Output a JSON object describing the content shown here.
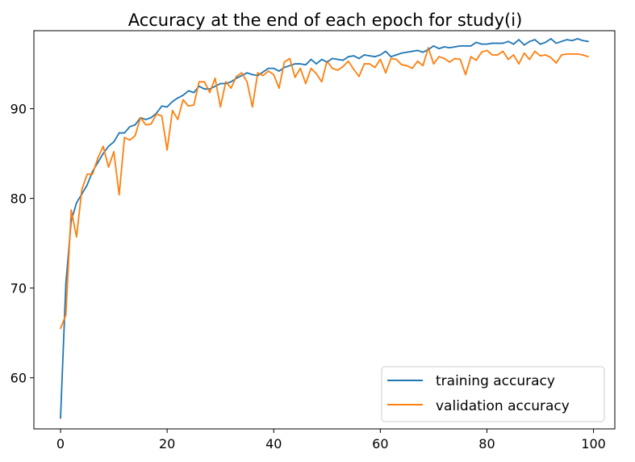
{
  "chart_data": {
    "type": "line",
    "title": "Accuracy at the end of each epoch for study(i)",
    "xlabel": "",
    "ylabel": "",
    "xlim": [
      -5,
      104
    ],
    "ylim": [
      54.3,
      98.7
    ],
    "xticks": [
      0,
      20,
      40,
      60,
      80,
      100
    ],
    "yticks": [
      60,
      70,
      80,
      90
    ],
    "grid": false,
    "legend_position": "lower-right",
    "x": [
      0,
      1,
      2,
      3,
      4,
      5,
      6,
      7,
      8,
      9,
      10,
      11,
      12,
      13,
      14,
      15,
      16,
      17,
      18,
      19,
      20,
      21,
      22,
      23,
      24,
      25,
      26,
      27,
      28,
      29,
      30,
      31,
      32,
      33,
      34,
      35,
      36,
      37,
      38,
      39,
      40,
      41,
      42,
      43,
      44,
      45,
      46,
      47,
      48,
      49,
      50,
      51,
      52,
      53,
      54,
      55,
      56,
      57,
      58,
      59,
      60,
      61,
      62,
      63,
      64,
      65,
      66,
      67,
      68,
      69,
      70,
      71,
      72,
      73,
      74,
      75,
      76,
      77,
      78,
      79,
      80,
      81,
      82,
      83,
      84,
      85,
      86,
      87,
      88,
      89,
      90,
      91,
      92,
      93,
      94,
      95,
      96,
      97,
      98,
      99
    ],
    "series": [
      {
        "name": "training accuracy",
        "color": "#1f77b4",
        "values": [
          55.5,
          70.5,
          77.5,
          79.5,
          80.5,
          81.5,
          83.0,
          84.0,
          85.0,
          85.8,
          86.3,
          87.3,
          87.3,
          88.0,
          88.2,
          89.0,
          88.8,
          89.0,
          89.5,
          90.3,
          90.2,
          90.8,
          91.2,
          91.5,
          92.0,
          91.8,
          92.5,
          92.2,
          92.2,
          92.5,
          92.8,
          92.8,
          93.0,
          93.4,
          93.7,
          94.0,
          93.8,
          93.7,
          94.1,
          94.5,
          94.5,
          94.2,
          94.6,
          94.8,
          95.0,
          95.0,
          94.9,
          95.5,
          95.0,
          95.5,
          95.2,
          95.6,
          95.5,
          95.4,
          95.8,
          95.9,
          95.6,
          96.0,
          95.9,
          95.8,
          96.0,
          96.4,
          95.8,
          96.0,
          96.2,
          96.3,
          96.4,
          96.5,
          96.3,
          96.6,
          97.0,
          96.7,
          96.9,
          96.8,
          96.9,
          97.0,
          97.0,
          97.0,
          97.4,
          97.2,
          97.2,
          97.3,
          97.3,
          97.3,
          97.5,
          97.2,
          97.7,
          97.1,
          97.5,
          97.7,
          97.2,
          97.4,
          97.8,
          97.3,
          97.5,
          97.7,
          97.6,
          97.8,
          97.6,
          97.5
        ]
      },
      {
        "name": "validation accuracy",
        "color": "#ff7f0e",
        "values": [
          65.5,
          67.0,
          78.7,
          75.7,
          81.0,
          82.7,
          82.7,
          84.5,
          85.8,
          83.5,
          85.2,
          80.4,
          86.8,
          86.5,
          87.0,
          89.0,
          88.2,
          88.3,
          89.4,
          89.2,
          85.4,
          89.8,
          88.8,
          91.0,
          90.3,
          90.4,
          93.0,
          93.0,
          91.8,
          93.4,
          90.2,
          93.0,
          92.3,
          93.6,
          94.0,
          93.0,
          90.2,
          94.0,
          93.7,
          94.2,
          93.8,
          92.3,
          95.2,
          95.6,
          93.5,
          94.5,
          92.8,
          94.5,
          93.9,
          93.0,
          95.3,
          94.5,
          94.3,
          94.7,
          95.3,
          94.4,
          93.6,
          95.0,
          95.0,
          94.6,
          95.5,
          94.0,
          95.6,
          95.5,
          94.9,
          94.8,
          94.5,
          95.3,
          94.8,
          96.8,
          95.0,
          95.8,
          95.6,
          95.2,
          95.6,
          95.5,
          93.8,
          95.8,
          95.4,
          96.3,
          96.5,
          96.0,
          96.0,
          96.4,
          95.5,
          96.0,
          95.0,
          96.2,
          95.5,
          96.4,
          95.9,
          96.0,
          95.7,
          95.1,
          96.0,
          96.1,
          96.1,
          96.1,
          96.0,
          95.8
        ]
      }
    ]
  }
}
